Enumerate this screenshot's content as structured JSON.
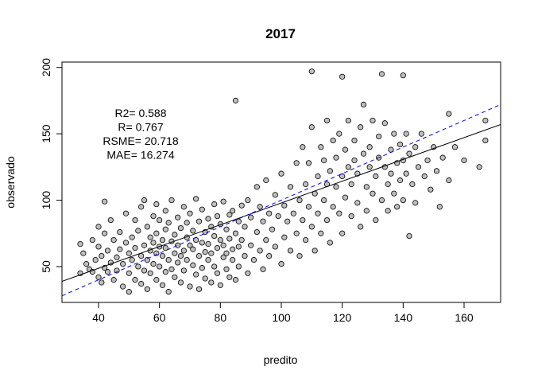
{
  "chart_data": {
    "type": "scatter",
    "title": "2017",
    "xlabel": "predito",
    "ylabel": "observado",
    "xlim": [
      28,
      172
    ],
    "ylim": [
      23,
      204
    ],
    "xticks": [
      "40",
      "60",
      "80",
      "100",
      "120",
      "140",
      "160"
    ],
    "yticks": [
      "50",
      "100",
      "150",
      "200"
    ],
    "annotations": [
      "R2= 0.588",
      "R= 0.767",
      "RSME= 20.718",
      "MAE= 16.274"
    ],
    "fit_line": {
      "intercept": 15.9,
      "slope": 0.82,
      "color": "#000000",
      "style": "solid"
    },
    "identity_line": {
      "intercept": 0,
      "slope": 1,
      "color": "#0000ff",
      "style": "dashed"
    },
    "point_fill": "#bebebe",
    "point_stroke": "#000000",
    "grid": false,
    "legend": "none",
    "series": [
      {
        "points": [
          [
            34,
            45
          ],
          [
            34,
            67
          ],
          [
            35,
            60
          ],
          [
            36,
            52
          ],
          [
            37,
            48
          ],
          [
            38,
            46
          ],
          [
            38,
            70
          ],
          [
            39,
            55
          ],
          [
            40,
            42
          ],
          [
            40,
            65
          ],
          [
            40,
            80
          ],
          [
            41,
            38
          ],
          [
            41,
            58
          ],
          [
            42,
            49
          ],
          [
            42,
            75
          ],
          [
            42,
            99
          ],
          [
            43,
            46
          ],
          [
            43,
            62
          ],
          [
            44,
            53
          ],
          [
            44,
            85
          ],
          [
            45,
            40
          ],
          [
            45,
            70
          ],
          [
            46,
            57
          ],
          [
            46,
            47
          ],
          [
            47,
            63
          ],
          [
            47,
            76
          ],
          [
            48,
            52
          ],
          [
            48,
            35
          ],
          [
            49,
            68
          ],
          [
            49,
            90
          ],
          [
            50,
            45
          ],
          [
            50,
            60
          ],
          [
            50,
            31
          ],
          [
            51,
            72
          ],
          [
            51,
            55
          ],
          [
            52,
            40
          ],
          [
            52,
            64
          ],
          [
            52,
            85
          ],
          [
            53,
            50
          ],
          [
            53,
            77
          ],
          [
            54,
            37
          ],
          [
            54,
            58
          ],
          [
            54,
            95
          ],
          [
            55,
            66
          ],
          [
            55,
            47
          ],
          [
            55,
            100
          ],
          [
            56,
            55
          ],
          [
            56,
            80
          ],
          [
            56,
            33
          ],
          [
            57,
            62
          ],
          [
            57,
            72
          ],
          [
            57,
            45
          ],
          [
            58,
            88
          ],
          [
            58,
            52
          ],
          [
            58,
            68
          ],
          [
            59,
            40
          ],
          [
            59,
            75
          ],
          [
            59,
            60
          ],
          [
            59,
            97
          ],
          [
            60,
            65
          ],
          [
            60,
            50
          ],
          [
            60,
            85
          ],
          [
            61,
            36
          ],
          [
            61,
            70
          ],
          [
            61,
            58
          ],
          [
            62,
            78
          ],
          [
            62,
            46
          ],
          [
            62,
            92
          ],
          [
            62,
            64
          ],
          [
            63,
            55
          ],
          [
            63,
            83
          ],
          [
            63,
            31
          ],
          [
            64,
            69
          ],
          [
            64,
            48
          ],
          [
            64,
            100
          ],
          [
            65,
            60
          ],
          [
            65,
            74
          ],
          [
            65,
            42
          ],
          [
            66,
            87
          ],
          [
            66,
            53
          ],
          [
            66,
            66
          ],
          [
            67,
            38
          ],
          [
            67,
            79
          ],
          [
            67,
            58
          ],
          [
            68,
            95
          ],
          [
            68,
            62
          ],
          [
            68,
            47
          ],
          [
            69,
            72
          ],
          [
            69,
            83
          ],
          [
            69,
            55
          ],
          [
            70,
            35
          ],
          [
            70,
            66
          ],
          [
            70,
            90
          ],
          [
            71,
            51
          ],
          [
            71,
            77
          ],
          [
            71,
            63
          ],
          [
            72,
            44
          ],
          [
            72,
            101
          ],
          [
            72,
            70
          ],
          [
            73,
            58
          ],
          [
            73,
            84
          ],
          [
            73,
            33
          ],
          [
            74,
            68
          ],
          [
            74,
            49
          ],
          [
            74,
            93
          ],
          [
            75,
            61
          ],
          [
            75,
            76
          ],
          [
            75,
            41
          ],
          [
            76,
            86
          ],
          [
            76,
            55
          ],
          [
            76,
            67
          ],
          [
            77,
            38
          ],
          [
            77,
            80
          ],
          [
            77,
            60
          ],
          [
            78,
            97
          ],
          [
            78,
            50
          ],
          [
            78,
            73
          ],
          [
            79,
            64
          ],
          [
            79,
            88
          ],
          [
            79,
            45
          ],
          [
            80,
            70
          ],
          [
            80,
            36
          ],
          [
            80,
            82
          ],
          [
            81,
            57
          ],
          [
            81,
            99
          ],
          [
            81,
            66
          ],
          [
            82,
            48
          ],
          [
            82,
            78
          ],
          [
            82,
            60
          ],
          [
            83,
            89
          ],
          [
            83,
            42
          ],
          [
            83,
            71
          ],
          [
            84,
            63
          ],
          [
            84,
            92
          ],
          [
            84,
            55
          ],
          [
            85,
            175
          ],
          [
            85,
            75
          ],
          [
            85,
            40
          ],
          [
            86,
            84
          ],
          [
            86,
            65
          ],
          [
            86,
            50
          ],
          [
            87,
            96
          ],
          [
            87,
            70
          ],
          [
            88,
            58
          ],
          [
            88,
            80
          ],
          [
            89,
            45
          ],
          [
            89,
            100
          ],
          [
            90,
            66
          ],
          [
            90,
            87
          ],
          [
            91,
            55
          ],
          [
            92,
            76
          ],
          [
            92,
            110
          ],
          [
            93,
            62
          ],
          [
            93,
            95
          ],
          [
            94,
            84
          ],
          [
            94,
            48
          ],
          [
            95,
            70
          ],
          [
            95,
            115
          ],
          [
            96,
            58
          ],
          [
            96,
            90
          ],
          [
            97,
            78
          ],
          [
            98,
            104
          ],
          [
            98,
            65
          ],
          [
            99,
            88
          ],
          [
            100,
            52
          ],
          [
            100,
            120
          ],
          [
            101,
            72
          ],
          [
            101,
            96
          ],
          [
            102,
            84
          ],
          [
            103,
            110
          ],
          [
            103,
            62
          ],
          [
            104,
            90
          ],
          [
            105,
            75
          ],
          [
            105,
            128
          ],
          [
            106,
            100
          ],
          [
            106,
            58
          ],
          [
            107,
            85
          ],
          [
            107,
            140
          ],
          [
            108,
            112
          ],
          [
            108,
            70
          ],
          [
            109,
            95
          ],
          [
            109,
            128
          ],
          [
            110,
            197
          ],
          [
            110,
            80
          ],
          [
            110,
            155
          ],
          [
            111,
            105
          ],
          [
            111,
            62
          ],
          [
            112,
            118
          ],
          [
            112,
            90
          ],
          [
            113,
            140
          ],
          [
            113,
            75
          ],
          [
            114,
            100
          ],
          [
            114,
            130
          ],
          [
            115,
            160
          ],
          [
            115,
            85
          ],
          [
            115,
            112
          ],
          [
            116,
            122
          ],
          [
            116,
            68
          ],
          [
            117,
            145
          ],
          [
            117,
            95
          ],
          [
            118,
            110
          ],
          [
            118,
            132
          ],
          [
            119,
            90
          ],
          [
            119,
            150
          ],
          [
            120,
            193
          ],
          [
            120,
            118
          ],
          [
            120,
            75
          ],
          [
            121,
            138
          ],
          [
            121,
            102
          ],
          [
            122,
            125
          ],
          [
            122,
            160
          ],
          [
            123,
            88
          ],
          [
            123,
            112
          ],
          [
            124,
            145
          ],
          [
            124,
            130
          ],
          [
            125,
            98
          ],
          [
            125,
            120
          ],
          [
            126,
            155
          ],
          [
            126,
            80
          ],
          [
            127,
            135
          ],
          [
            127,
            172
          ],
          [
            128,
            110
          ],
          [
            128,
            92
          ],
          [
            129,
            140
          ],
          [
            129,
            125
          ],
          [
            130,
            105
          ],
          [
            130,
            160
          ],
          [
            131,
            118
          ],
          [
            131,
            85
          ],
          [
            132,
            148
          ],
          [
            132,
            132
          ],
          [
            133,
            195
          ],
          [
            133,
            100
          ],
          [
            134,
            125
          ],
          [
            134,
            158
          ],
          [
            135,
            112
          ],
          [
            135,
            92
          ],
          [
            136,
            138
          ],
          [
            136,
            120
          ],
          [
            137,
            150
          ],
          [
            137,
            105
          ],
          [
            138,
            128
          ],
          [
            138,
            95
          ],
          [
            139,
            142
          ],
          [
            139,
            115
          ],
          [
            140,
            130
          ],
          [
            140,
            194
          ],
          [
            140,
            100
          ],
          [
            141,
            120
          ],
          [
            141,
            150
          ],
          [
            142,
            73
          ],
          [
            142,
            135
          ],
          [
            143,
            112
          ],
          [
            144,
            140
          ],
          [
            144,
            98
          ],
          [
            145,
            125
          ],
          [
            146,
            150
          ],
          [
            147,
            118
          ],
          [
            148,
            130
          ],
          [
            149,
            108
          ],
          [
            150,
            140
          ],
          [
            151,
            122
          ],
          [
            152,
            95
          ],
          [
            153,
            132
          ],
          [
            155,
            165
          ],
          [
            155,
            115
          ],
          [
            157,
            140
          ],
          [
            160,
            130
          ],
          [
            165,
            125
          ],
          [
            167,
            145
          ],
          [
            167,
            160
          ]
        ]
      }
    ]
  }
}
